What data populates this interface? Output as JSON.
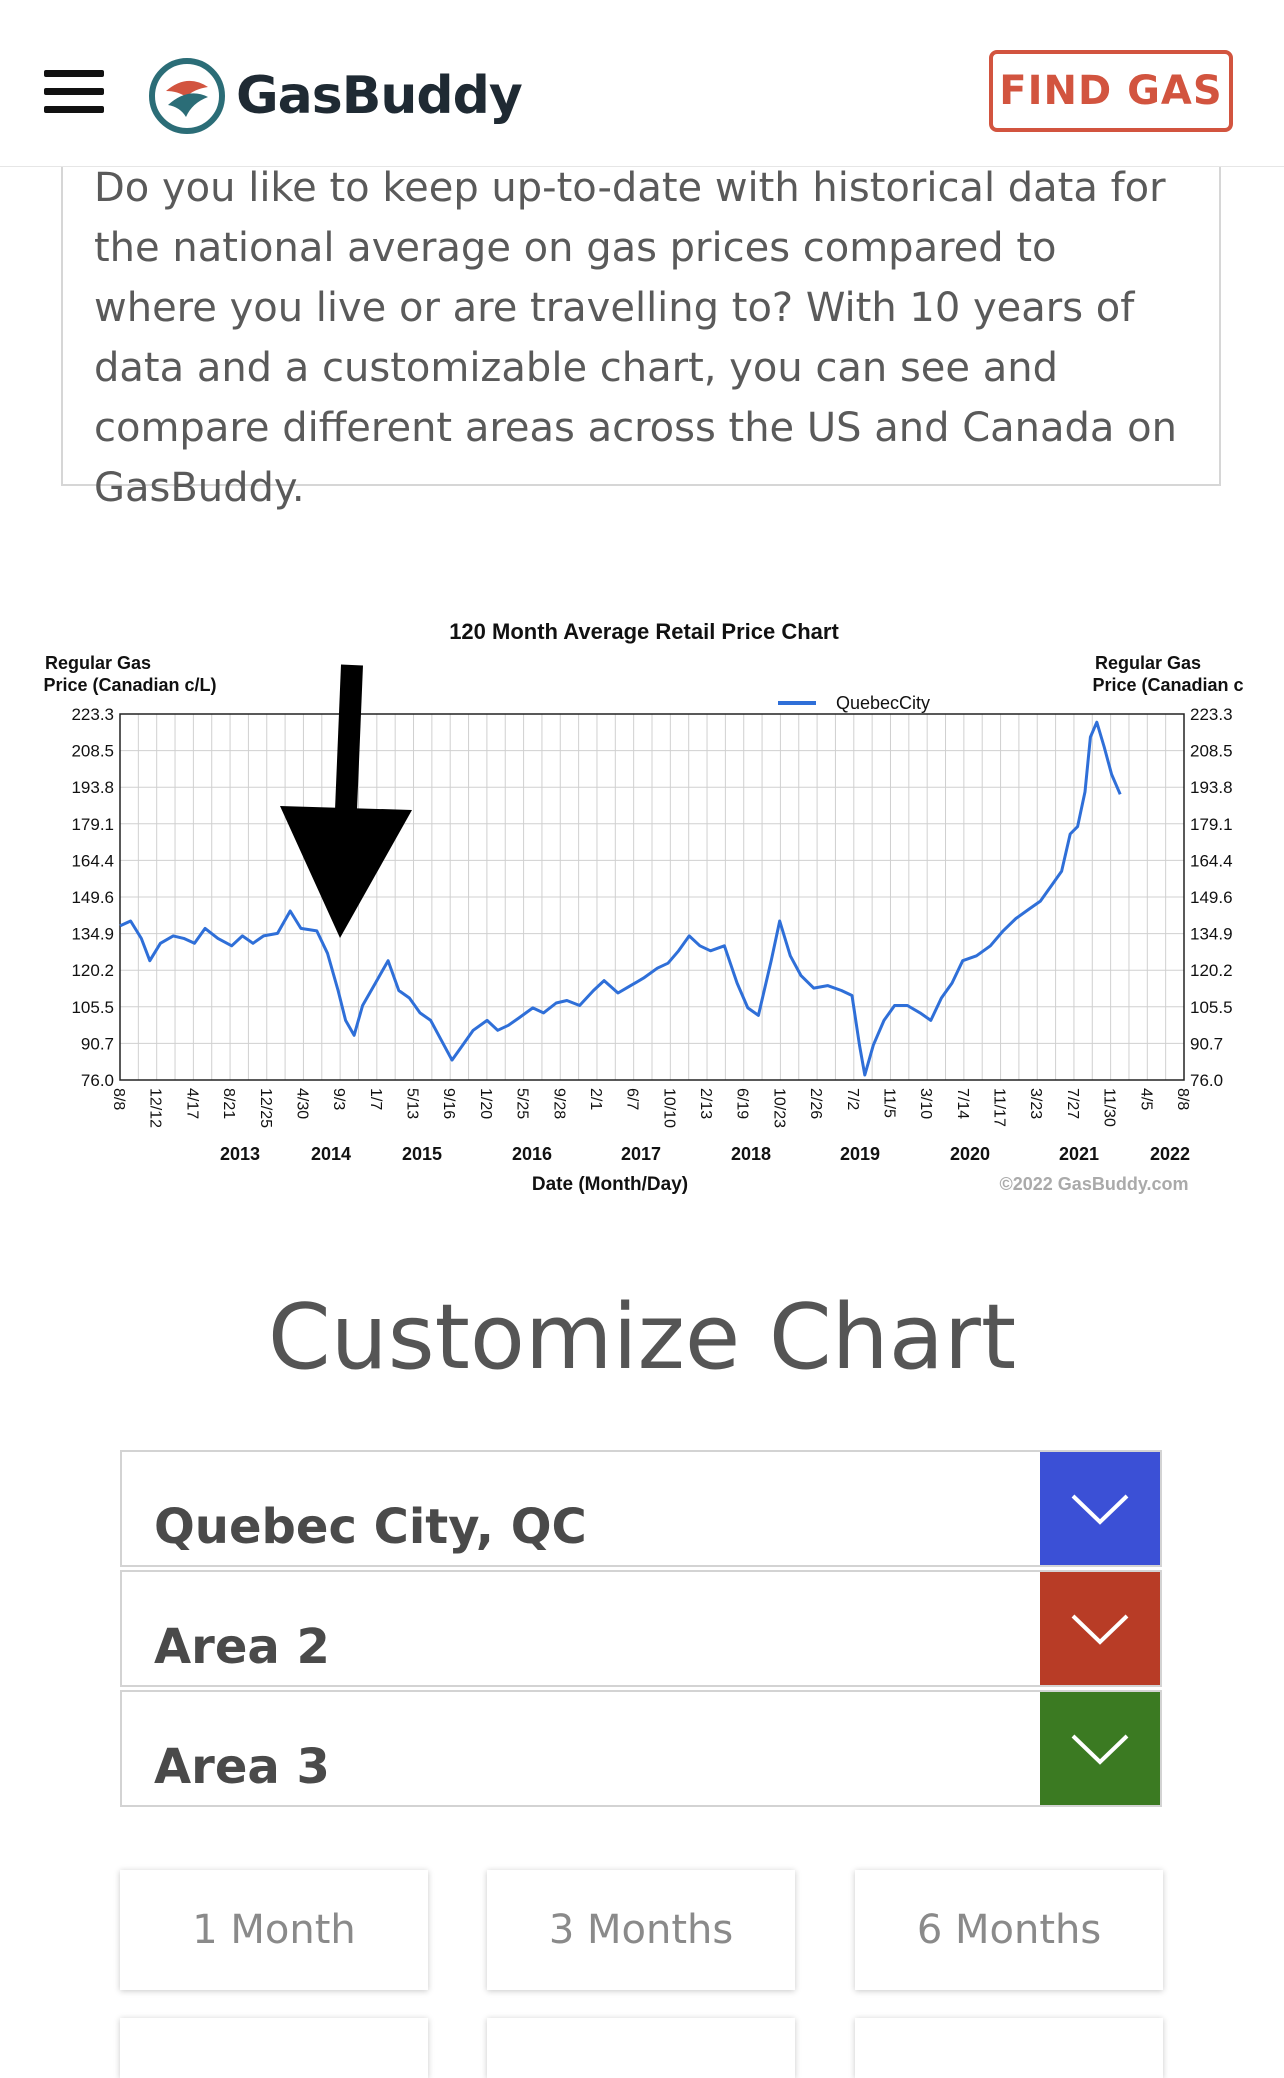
{
  "header": {
    "brand": "GasBuddy",
    "find_gas_label": "FIND GAS",
    "colors": {
      "accent": "#d2543f",
      "logo_ring": "#2b6d77",
      "logo_red": "#d2543f"
    }
  },
  "intro": {
    "text": "Do you like to keep up-to-date with historical data for the national average on gas prices compared to where you live or are travelling to? With 10 years of data and a customizable chart, you can see and compare different areas across the US and Canada on GasBuddy."
  },
  "chart": {
    "title": "120 Month Average Retail Price Chart",
    "ylabel_left": [
      "Regular Gas",
      "Price (Canadian c/L)"
    ],
    "ylabel_right": [
      "Regular Gas",
      "Price (Canadian c"
    ],
    "xlabel": "Date (Month/Day)",
    "copyright": "©2022 GasBuddy.com",
    "legend": "QuebecCity"
  },
  "chart_data": {
    "type": "line",
    "title": "120 Month Average Retail Price Chart",
    "xlabel": "Date (Month/Day)",
    "ylabel": "Regular Gas Price (Canadian c/L)",
    "ylim": [
      76.0,
      223.3
    ],
    "yticks": [
      "223.3",
      "208.5",
      "193.8",
      "179.1",
      "164.4",
      "149.6",
      "134.9",
      "120.2",
      "105.5",
      "90.7",
      "76.0"
    ],
    "xticks": [
      "8/8",
      "12/12",
      "4/17",
      "8/21",
      "12/25",
      "4/30",
      "9/3",
      "1/7",
      "5/13",
      "9/16",
      "1/20",
      "5/25",
      "9/28",
      "2/1",
      "6/7",
      "10/10",
      "2/13",
      "6/19",
      "10/23",
      "2/26",
      "7/2",
      "11/5",
      "3/10",
      "7/14",
      "11/17",
      "3/23",
      "7/27",
      "11/30",
      "4/5",
      "8/8"
    ],
    "year_labels": [
      "2013",
      "2014",
      "2015",
      "2016",
      "2017",
      "2018",
      "2019",
      "2020",
      "2021",
      "2022"
    ],
    "grid": true,
    "legend_position": "top-right",
    "annotation": "black arrow pointing at 2014 peak",
    "series": [
      {
        "name": "QuebecCity",
        "color": "#2f6fd8",
        "points": [
          [
            0.0,
            138
          ],
          [
            0.01,
            140
          ],
          [
            0.02,
            133
          ],
          [
            0.028,
            124
          ],
          [
            0.038,
            131
          ],
          [
            0.05,
            134
          ],
          [
            0.06,
            133
          ],
          [
            0.07,
            131
          ],
          [
            0.08,
            137
          ],
          [
            0.092,
            133
          ],
          [
            0.105,
            130
          ],
          [
            0.115,
            134
          ],
          [
            0.125,
            131
          ],
          [
            0.135,
            134
          ],
          [
            0.148,
            135
          ],
          [
            0.16,
            144
          ],
          [
            0.17,
            137
          ],
          [
            0.185,
            136
          ],
          [
            0.195,
            127
          ],
          [
            0.205,
            112
          ],
          [
            0.212,
            100
          ],
          [
            0.22,
            94
          ],
          [
            0.228,
            106
          ],
          [
            0.24,
            115
          ],
          [
            0.252,
            124
          ],
          [
            0.262,
            112
          ],
          [
            0.272,
            109
          ],
          [
            0.282,
            103
          ],
          [
            0.292,
            100
          ],
          [
            0.302,
            92
          ],
          [
            0.312,
            84
          ],
          [
            0.322,
            90
          ],
          [
            0.332,
            96
          ],
          [
            0.345,
            100
          ],
          [
            0.355,
            96
          ],
          [
            0.365,
            98
          ],
          [
            0.375,
            101
          ],
          [
            0.388,
            105
          ],
          [
            0.398,
            103
          ],
          [
            0.41,
            107
          ],
          [
            0.42,
            108
          ],
          [
            0.432,
            106
          ],
          [
            0.445,
            112
          ],
          [
            0.455,
            116
          ],
          [
            0.468,
            111
          ],
          [
            0.48,
            114
          ],
          [
            0.492,
            117
          ],
          [
            0.505,
            121
          ],
          [
            0.515,
            123
          ],
          [
            0.525,
            128
          ],
          [
            0.535,
            134
          ],
          [
            0.545,
            130
          ],
          [
            0.555,
            128
          ],
          [
            0.568,
            130
          ],
          [
            0.58,
            115
          ],
          [
            0.59,
            105
          ],
          [
            0.6,
            102
          ],
          [
            0.612,
            124
          ],
          [
            0.62,
            140
          ],
          [
            0.63,
            126
          ],
          [
            0.64,
            118
          ],
          [
            0.652,
            113
          ],
          [
            0.665,
            114
          ],
          [
            0.678,
            112
          ],
          [
            0.688,
            110
          ],
          [
            0.695,
            90
          ],
          [
            0.7,
            78
          ],
          [
            0.708,
            90
          ],
          [
            0.718,
            100
          ],
          [
            0.728,
            106
          ],
          [
            0.74,
            106
          ],
          [
            0.752,
            103
          ],
          [
            0.762,
            100
          ],
          [
            0.772,
            109
          ],
          [
            0.782,
            115
          ],
          [
            0.792,
            124
          ],
          [
            0.805,
            126
          ],
          [
            0.818,
            130
          ],
          [
            0.83,
            136
          ],
          [
            0.842,
            141
          ],
          [
            0.855,
            145
          ],
          [
            0.865,
            148
          ],
          [
            0.875,
            154
          ],
          [
            0.885,
            160
          ],
          [
            0.893,
            175
          ],
          [
            0.9,
            178
          ],
          [
            0.907,
            192
          ],
          [
            0.912,
            214
          ],
          [
            0.918,
            220
          ],
          [
            0.925,
            210
          ],
          [
            0.932,
            199
          ],
          [
            0.94,
            191
          ]
        ]
      }
    ]
  },
  "customize": {
    "title": "Customize Chart",
    "areas": [
      {
        "label": "Quebec City, QC",
        "color": "#3b50d6"
      },
      {
        "label": "Area 2",
        "color": "#b83c26"
      },
      {
        "label": "Area 3",
        "color": "#3b7a22"
      }
    ],
    "ranges": [
      "1 Month",
      "3 Months",
      "6 Months"
    ]
  }
}
